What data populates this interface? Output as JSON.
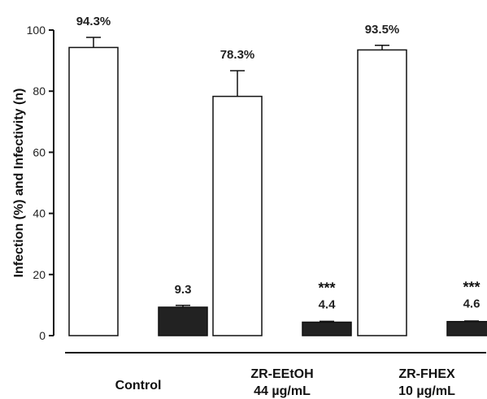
{
  "chart_data": {
    "type": "bar",
    "ylabel": "Infection (%) and Infectivity (n)",
    "ylim": [
      0,
      100
    ],
    "yticks": [
      0,
      20,
      40,
      60,
      80,
      100
    ],
    "categories": [
      {
        "lines": [
          "Control"
        ]
      },
      {
        "lines": [
          "ZR-EEtOH",
          "44 µg/mL"
        ]
      },
      {
        "lines": [
          "ZR-FHEX",
          "10 µg/mL"
        ]
      }
    ],
    "series": [
      {
        "fill": "#ffffff",
        "values": [
          94.3,
          78.3,
          93.5
        ],
        "errors": [
          3.3,
          8.4,
          1.5
        ],
        "labels": [
          "94.3%",
          "78.3%",
          "93.5%"
        ],
        "annotations": [
          "",
          "",
          ""
        ]
      },
      {
        "fill": "#222222",
        "values": [
          9.3,
          4.4,
          4.6
        ],
        "errors": [
          0.6,
          0.3,
          0.2
        ],
        "labels": [
          "9.3",
          "4.4",
          "4.6"
        ],
        "annotations": [
          "",
          "***",
          "***"
        ]
      }
    ],
    "legend": "none",
    "grid": false
  }
}
